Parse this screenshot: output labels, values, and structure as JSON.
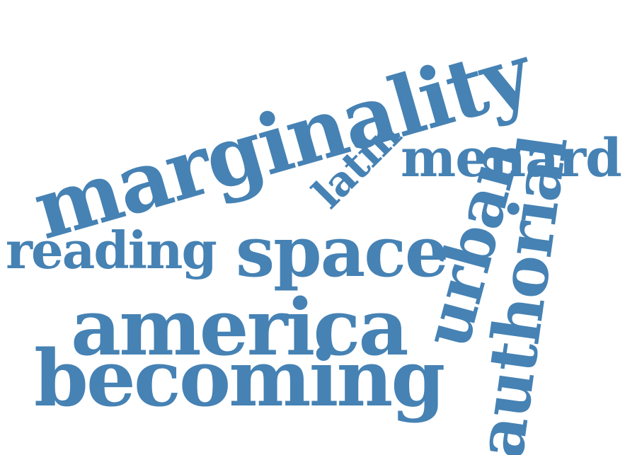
{
  "color": "#4682b4",
  "words": [
    "marginality",
    "menard",
    "latin",
    "reading",
    "space",
    "america",
    "becoming",
    "urban",
    "authorial"
  ]
}
